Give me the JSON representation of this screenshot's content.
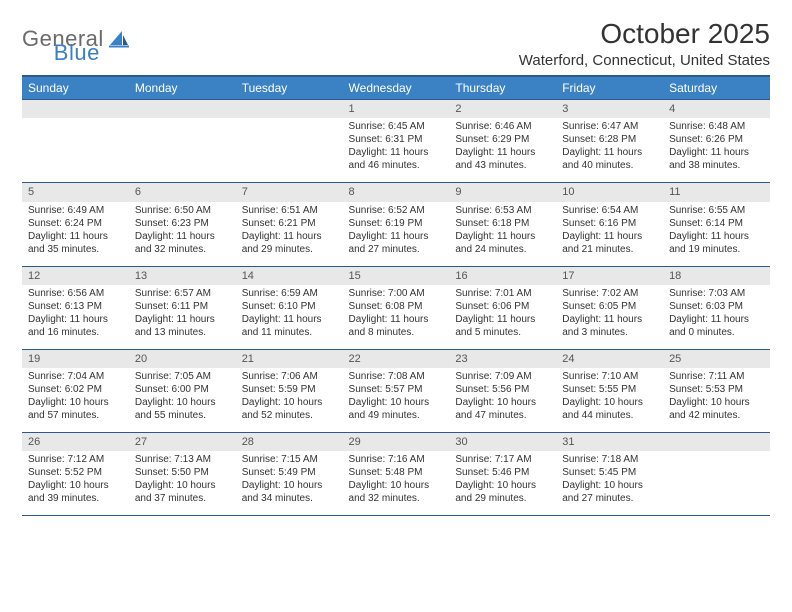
{
  "logo": {
    "general": "General",
    "blue": "Blue"
  },
  "title": "October 2025",
  "location": "Waterford, Connecticut, United States",
  "dayHeaders": [
    "Sunday",
    "Monday",
    "Tuesday",
    "Wednesday",
    "Thursday",
    "Friday",
    "Saturday"
  ],
  "colors": {
    "headerBg": "#3b82c4",
    "headerBorder": "#2a5a8a",
    "dayNumBg": "#e8e8e8",
    "text": "#333333",
    "logoGray": "#6b6b6b",
    "logoBlue": "#3b7fc4"
  },
  "weeks": [
    {
      "nums": [
        "",
        "",
        "",
        "1",
        "2",
        "3",
        "4"
      ],
      "cells": [
        null,
        null,
        null,
        {
          "sunrise": "Sunrise: 6:45 AM",
          "sunset": "Sunset: 6:31 PM",
          "day1": "Daylight: 11 hours",
          "day2": "and 46 minutes."
        },
        {
          "sunrise": "Sunrise: 6:46 AM",
          "sunset": "Sunset: 6:29 PM",
          "day1": "Daylight: 11 hours",
          "day2": "and 43 minutes."
        },
        {
          "sunrise": "Sunrise: 6:47 AM",
          "sunset": "Sunset: 6:28 PM",
          "day1": "Daylight: 11 hours",
          "day2": "and 40 minutes."
        },
        {
          "sunrise": "Sunrise: 6:48 AM",
          "sunset": "Sunset: 6:26 PM",
          "day1": "Daylight: 11 hours",
          "day2": "and 38 minutes."
        }
      ]
    },
    {
      "nums": [
        "5",
        "6",
        "7",
        "8",
        "9",
        "10",
        "11"
      ],
      "cells": [
        {
          "sunrise": "Sunrise: 6:49 AM",
          "sunset": "Sunset: 6:24 PM",
          "day1": "Daylight: 11 hours",
          "day2": "and 35 minutes."
        },
        {
          "sunrise": "Sunrise: 6:50 AM",
          "sunset": "Sunset: 6:23 PM",
          "day1": "Daylight: 11 hours",
          "day2": "and 32 minutes."
        },
        {
          "sunrise": "Sunrise: 6:51 AM",
          "sunset": "Sunset: 6:21 PM",
          "day1": "Daylight: 11 hours",
          "day2": "and 29 minutes."
        },
        {
          "sunrise": "Sunrise: 6:52 AM",
          "sunset": "Sunset: 6:19 PM",
          "day1": "Daylight: 11 hours",
          "day2": "and 27 minutes."
        },
        {
          "sunrise": "Sunrise: 6:53 AM",
          "sunset": "Sunset: 6:18 PM",
          "day1": "Daylight: 11 hours",
          "day2": "and 24 minutes."
        },
        {
          "sunrise": "Sunrise: 6:54 AM",
          "sunset": "Sunset: 6:16 PM",
          "day1": "Daylight: 11 hours",
          "day2": "and 21 minutes."
        },
        {
          "sunrise": "Sunrise: 6:55 AM",
          "sunset": "Sunset: 6:14 PM",
          "day1": "Daylight: 11 hours",
          "day2": "and 19 minutes."
        }
      ]
    },
    {
      "nums": [
        "12",
        "13",
        "14",
        "15",
        "16",
        "17",
        "18"
      ],
      "cells": [
        {
          "sunrise": "Sunrise: 6:56 AM",
          "sunset": "Sunset: 6:13 PM",
          "day1": "Daylight: 11 hours",
          "day2": "and 16 minutes."
        },
        {
          "sunrise": "Sunrise: 6:57 AM",
          "sunset": "Sunset: 6:11 PM",
          "day1": "Daylight: 11 hours",
          "day2": "and 13 minutes."
        },
        {
          "sunrise": "Sunrise: 6:59 AM",
          "sunset": "Sunset: 6:10 PM",
          "day1": "Daylight: 11 hours",
          "day2": "and 11 minutes."
        },
        {
          "sunrise": "Sunrise: 7:00 AM",
          "sunset": "Sunset: 6:08 PM",
          "day1": "Daylight: 11 hours",
          "day2": "and 8 minutes."
        },
        {
          "sunrise": "Sunrise: 7:01 AM",
          "sunset": "Sunset: 6:06 PM",
          "day1": "Daylight: 11 hours",
          "day2": "and 5 minutes."
        },
        {
          "sunrise": "Sunrise: 7:02 AM",
          "sunset": "Sunset: 6:05 PM",
          "day1": "Daylight: 11 hours",
          "day2": "and 3 minutes."
        },
        {
          "sunrise": "Sunrise: 7:03 AM",
          "sunset": "Sunset: 6:03 PM",
          "day1": "Daylight: 11 hours",
          "day2": "and 0 minutes."
        }
      ]
    },
    {
      "nums": [
        "19",
        "20",
        "21",
        "22",
        "23",
        "24",
        "25"
      ],
      "cells": [
        {
          "sunrise": "Sunrise: 7:04 AM",
          "sunset": "Sunset: 6:02 PM",
          "day1": "Daylight: 10 hours",
          "day2": "and 57 minutes."
        },
        {
          "sunrise": "Sunrise: 7:05 AM",
          "sunset": "Sunset: 6:00 PM",
          "day1": "Daylight: 10 hours",
          "day2": "and 55 minutes."
        },
        {
          "sunrise": "Sunrise: 7:06 AM",
          "sunset": "Sunset: 5:59 PM",
          "day1": "Daylight: 10 hours",
          "day2": "and 52 minutes."
        },
        {
          "sunrise": "Sunrise: 7:08 AM",
          "sunset": "Sunset: 5:57 PM",
          "day1": "Daylight: 10 hours",
          "day2": "and 49 minutes."
        },
        {
          "sunrise": "Sunrise: 7:09 AM",
          "sunset": "Sunset: 5:56 PM",
          "day1": "Daylight: 10 hours",
          "day2": "and 47 minutes."
        },
        {
          "sunrise": "Sunrise: 7:10 AM",
          "sunset": "Sunset: 5:55 PM",
          "day1": "Daylight: 10 hours",
          "day2": "and 44 minutes."
        },
        {
          "sunrise": "Sunrise: 7:11 AM",
          "sunset": "Sunset: 5:53 PM",
          "day1": "Daylight: 10 hours",
          "day2": "and 42 minutes."
        }
      ]
    },
    {
      "nums": [
        "26",
        "27",
        "28",
        "29",
        "30",
        "31",
        ""
      ],
      "cells": [
        {
          "sunrise": "Sunrise: 7:12 AM",
          "sunset": "Sunset: 5:52 PM",
          "day1": "Daylight: 10 hours",
          "day2": "and 39 minutes."
        },
        {
          "sunrise": "Sunrise: 7:13 AM",
          "sunset": "Sunset: 5:50 PM",
          "day1": "Daylight: 10 hours",
          "day2": "and 37 minutes."
        },
        {
          "sunrise": "Sunrise: 7:15 AM",
          "sunset": "Sunset: 5:49 PM",
          "day1": "Daylight: 10 hours",
          "day2": "and 34 minutes."
        },
        {
          "sunrise": "Sunrise: 7:16 AM",
          "sunset": "Sunset: 5:48 PM",
          "day1": "Daylight: 10 hours",
          "day2": "and 32 minutes."
        },
        {
          "sunrise": "Sunrise: 7:17 AM",
          "sunset": "Sunset: 5:46 PM",
          "day1": "Daylight: 10 hours",
          "day2": "and 29 minutes."
        },
        {
          "sunrise": "Sunrise: 7:18 AM",
          "sunset": "Sunset: 5:45 PM",
          "day1": "Daylight: 10 hours",
          "day2": "and 27 minutes."
        },
        null
      ]
    }
  ]
}
